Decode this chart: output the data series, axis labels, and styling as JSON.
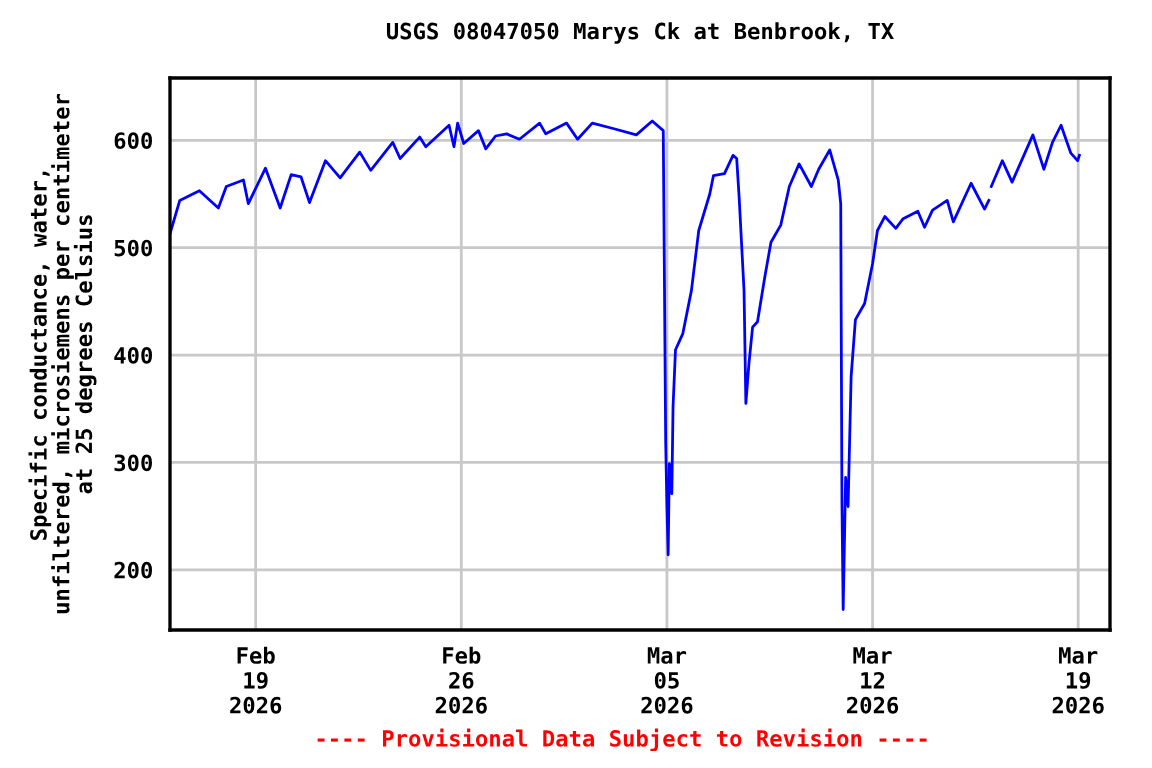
{
  "chart_data": {
    "type": "line",
    "title": "USGS 08047050 Marys Ck at Benbrook, TX",
    "ylabel": "Specific conductance, water,\nunfiltered, microsiemens per centimeter\nat 25 degrees Celsius",
    "annotations": [
      "---- Provisional Data Subject to Revision ----"
    ],
    "x": [
      "2026-02-16T02:00",
      "2026-02-16T10:00",
      "2026-02-17T02:00",
      "2026-02-17T17:30",
      "2026-02-18T00:00",
      "2026-02-18T14:00",
      "2026-02-18T18:00",
      "2026-02-19T08:00",
      "2026-02-19T20:00",
      "2026-02-20T05:00",
      "2026-02-20T13:00",
      "2026-02-20T20:00",
      "2026-02-21T09:00",
      "2026-02-21T21:00",
      "2026-02-22T13:00",
      "2026-02-22T22:00",
      "2026-02-23T16:00",
      "2026-02-23T22:00",
      "2026-02-24T14:00",
      "2026-02-24T19:00",
      "2026-02-25T14:00",
      "2026-02-25T18:00",
      "2026-02-25T21:00",
      "2026-02-26T02:00",
      "2026-02-26T14:00",
      "2026-02-26T20:00",
      "2026-02-27T04:00",
      "2026-02-27T13:00",
      "2026-02-27T23:30",
      "2026-02-28T16:00",
      "2026-02-28T21:00",
      "2026-03-01T14:00",
      "2026-03-01T23:00",
      "2026-03-02T11:00",
      "2026-03-03T04:00",
      "2026-03-03T23:00",
      "2026-03-04T12:00",
      "2026-03-04T21:00",
      "2026-03-04T23:00",
      "2026-03-05T00:00",
      "2026-03-05T01:00",
      "2026-03-05T02:00",
      "2026-03-05T04:00",
      "2026-03-05T05:00",
      "2026-03-05T07:00",
      "2026-03-05T13:00",
      "2026-03-05T20:00",
      "2026-03-06T02:00",
      "2026-03-06T11:00",
      "2026-03-06T14:00",
      "2026-03-06T23:00",
      "2026-03-07T06:00",
      "2026-03-07T09:00",
      "2026-03-07T11:00",
      "2026-03-07T15:00",
      "2026-03-07T16:30",
      "2026-03-07T19:00",
      "2026-03-07T22:00",
      "2026-03-08T02:00",
      "2026-03-08T08:00",
      "2026-03-08T13:00",
      "2026-03-08T21:00",
      "2026-03-09T04:00",
      "2026-03-09T12:00",
      "2026-03-09T22:00",
      "2026-03-10T04:00",
      "2026-03-10T13:00",
      "2026-03-10T20:00",
      "2026-03-10T22:00",
      "2026-03-10T23:00",
      "2026-03-11T00:00",
      "2026-03-11T02:00",
      "2026-03-11T04:00",
      "2026-03-11T06:30",
      "2026-03-11T10:00",
      "2026-03-11T17:30",
      "2026-03-12T00:00",
      "2026-03-12T04:00",
      "2026-03-12T10:00",
      "2026-03-12T19:00",
      "2026-03-13T01:00",
      "2026-03-13T13:00",
      "2026-03-13T18:30",
      "2026-03-14T01:00",
      "2026-03-14T13:00",
      "2026-03-14T18:00",
      "2026-03-15T08:30",
      "2026-03-15T19:30",
      "2026-03-15T23:00",
      "2026-03-16T00:00",
      "2026-03-16T01:00",
      "2026-03-16T10:00",
      "2026-03-16T18:00",
      "2026-03-17T11:00",
      "2026-03-17T20:00",
      "2026-03-18T03:00",
      "2026-03-18T10:00",
      "2026-03-18T18:00",
      "2026-03-18T23:30",
      "2026-03-19T01:00"
    ],
    "series": [
      {
        "color": "#0000ff",
        "values": [
          513,
          544,
          553,
          537,
          557,
          563,
          541,
          574,
          537,
          568,
          566,
          542,
          581,
          565,
          589,
          572,
          598,
          583,
          603,
          594,
          614,
          594,
          616,
          597,
          609,
          592,
          604,
          606,
          601,
          616,
          606,
          616,
          601,
          616,
          611,
          605,
          618,
          609,
          318,
          259,
          214,
          299,
          271,
          352,
          405,
          420,
          460,
          516,
          550,
          567,
          569,
          586,
          583,
          547,
          460,
          355,
          392,
          426,
          431,
          473,
          505,
          521,
          557,
          578,
          557,
          573,
          591,
          563,
          541,
          262,
          163,
          286,
          259,
          380,
          433,
          448,
          485,
          516,
          529,
          518,
          527,
          534,
          519,
          535,
          544,
          524,
          560,
          536,
          544,
          null,
          557,
          581,
          561,
          605,
          573,
          598,
          614,
          588,
          581,
          586
        ]
      }
    ],
    "xlim": [
      "2026-02-16T02:00",
      "2026-03-20T02:00"
    ],
    "xticks": [
      {
        "value": "2026-02-19",
        "label": "Feb\n19\n2026"
      },
      {
        "value": "2026-02-26",
        "label": "Feb\n26\n2026"
      },
      {
        "value": "2026-03-05",
        "label": "Mar\n05\n2026"
      },
      {
        "value": "2026-03-12",
        "label": "Mar\n12\n2026"
      },
      {
        "value": "2026-03-19",
        "label": "Mar\n19\n2026"
      }
    ],
    "ylim": [
      144,
      658
    ],
    "yticks": [
      200,
      300,
      400,
      500,
      600
    ],
    "grid": true,
    "legend": false
  }
}
